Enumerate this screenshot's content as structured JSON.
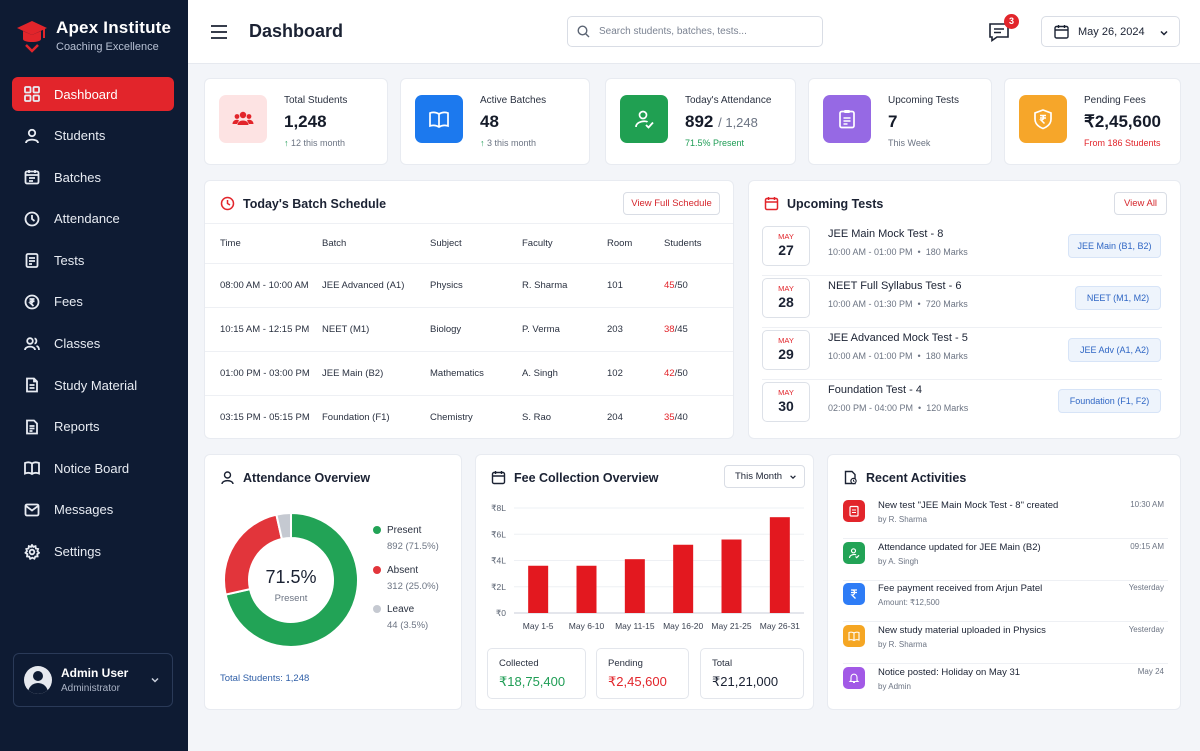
{
  "brand": {
    "name": "Apex Institute",
    "tagline": "Coaching Excellence"
  },
  "nav": [
    {
      "label": "Dashboard",
      "icon": "grid-icon",
      "active": true
    },
    {
      "label": "Students",
      "icon": "user-icon"
    },
    {
      "label": "Batches",
      "icon": "calendar-icon"
    },
    {
      "label": "Attendance",
      "icon": "clock-icon"
    },
    {
      "label": "Tests",
      "icon": "clipboard-icon"
    },
    {
      "label": "Fees",
      "icon": "rupee-circle-icon"
    },
    {
      "label": "Classes",
      "icon": "users-icon"
    },
    {
      "label": "Study Material",
      "icon": "document-icon"
    },
    {
      "label": "Reports",
      "icon": "report-icon"
    },
    {
      "label": "Notice Board",
      "icon": "book-icon"
    },
    {
      "label": "Messages",
      "icon": "mail-icon"
    },
    {
      "label": "Settings",
      "icon": "gear-icon"
    }
  ],
  "user": {
    "name": "Admin User",
    "role": "Administrator"
  },
  "header": {
    "title": "Dashboard",
    "search_placeholder": "Search students, batches, tests...",
    "message_count": "3",
    "date": "May 26, 2024"
  },
  "stats": {
    "students": {
      "label": "Total Students",
      "value": "1,248",
      "sub": "12 this month"
    },
    "batches": {
      "label": "Active Batches",
      "value": "48",
      "sub": "3 this month"
    },
    "attendance": {
      "label": "Today's Attendance",
      "value": "892",
      "total": "/ 1,248",
      "sub": "71.5% Present"
    },
    "tests": {
      "label": "Upcoming Tests",
      "value": "7",
      "sub": "This Week"
    },
    "fees": {
      "label": "Pending Fees",
      "value": "₹2,45,600",
      "sub": "From 186 Students"
    }
  },
  "schedule": {
    "title": "Today's Batch Schedule",
    "button": "View Full Schedule",
    "columns": [
      "Time",
      "Batch",
      "Subject",
      "Faculty",
      "Room",
      "Students"
    ],
    "rows": [
      {
        "time": "08:00 AM - 10:00 AM",
        "batch": "JEE Advanced (A1)",
        "subject": "Physics",
        "faculty": "R. Sharma",
        "room": "101",
        "present": "45",
        "total": "/50"
      },
      {
        "time": "10:15 AM - 12:15 PM",
        "batch": "NEET (M1)",
        "subject": "Biology",
        "faculty": "P. Verma",
        "room": "203",
        "present": "38",
        "total": "/45"
      },
      {
        "time": "01:00 PM - 03:00 PM",
        "batch": "JEE Main (B2)",
        "subject": "Mathematics",
        "faculty": "A. Singh",
        "room": "102",
        "present": "42",
        "total": "/50"
      },
      {
        "time": "03:15 PM - 05:15 PM",
        "batch": "Foundation (F1)",
        "subject": "Chemistry",
        "faculty": "S. Rao",
        "room": "204",
        "present": "35",
        "total": "/40"
      }
    ]
  },
  "upcoming": {
    "title": "Upcoming Tests",
    "button": "View All",
    "items": [
      {
        "month": "MAY",
        "day": "27",
        "name": "JEE Main Mock Test - 8",
        "time": "10:00 AM - 01:00 PM",
        "marks": "180 Marks",
        "tag": "JEE Main (B1, B2)"
      },
      {
        "month": "MAY",
        "day": "28",
        "name": "NEET Full Syllabus Test - 6",
        "time": "10:00 AM - 01:30 PM",
        "marks": "720 Marks",
        "tag": "NEET (M1, M2)"
      },
      {
        "month": "MAY",
        "day": "29",
        "name": "JEE Advanced Mock Test - 5",
        "time": "10:00 AM - 01:00 PM",
        "marks": "180 Marks",
        "tag": "JEE Adv (A1, A2)"
      },
      {
        "month": "MAY",
        "day": "30",
        "name": "Foundation Test - 4",
        "time": "02:00 PM - 04:00 PM",
        "marks": "120 Marks",
        "tag": "Foundation (F1, F2)"
      }
    ]
  },
  "attendance_overview": {
    "title": "Attendance Overview",
    "center_value": "71.5%",
    "center_label": "Present",
    "legend": [
      {
        "label": "Present",
        "value": "892 (71.5%)",
        "color": "#22a356"
      },
      {
        "label": "Absent",
        "value": "312 (25.0%)",
        "color": "#e2353b"
      },
      {
        "label": "Leave",
        "value": "44 (3.5%)",
        "color": "#c5c9d1"
      }
    ],
    "footer": "Total Students: 1,248"
  },
  "fee_overview": {
    "title": "Fee Collection Overview",
    "period": "This Month",
    "collected_label": "Collected",
    "collected": "₹18,75,400",
    "pending_label": "Pending",
    "pending": "₹2,45,600",
    "total_label": "Total",
    "total": "₹21,21,000"
  },
  "chart_data": {
    "type": "bar",
    "categories": [
      "May 1-5",
      "May 6-10",
      "May 11-15",
      "May 16-20",
      "May 21-25",
      "May 26-31"
    ],
    "values": [
      3.6,
      3.6,
      4.1,
      5.2,
      5.6,
      7.3
    ],
    "yticks": [
      "₹0",
      "₹2L",
      "₹4L",
      "₹6L",
      "₹8L"
    ],
    "ylim": [
      0,
      8
    ],
    "color": "#e3181f",
    "grid": true
  },
  "activities": {
    "title": "Recent Activities",
    "items": [
      {
        "text": "New test \"JEE Main Mock Test - 8\" created",
        "by": "by R. Sharma",
        "time": "10:30 AM",
        "color": "#e2252b",
        "icon": "clipboard-icon"
      },
      {
        "text": "Attendance updated for JEE Main (B2)",
        "by": "by A. Singh",
        "time": "09:15 AM",
        "color": "#22a356",
        "icon": "user-check-icon"
      },
      {
        "text": "Fee payment received from Arjun Patel",
        "by": "Amount: ₹12,500",
        "time": "Yesterday",
        "color": "#2e7cf6",
        "icon": "rupee-icon"
      },
      {
        "text": "New study material uploaded in Physics",
        "by": "by R. Sharma",
        "time": "Yesterday",
        "color": "#f5a623",
        "icon": "book-icon"
      },
      {
        "text": "Notice posted: Holiday on May 31",
        "by": "by Admin",
        "time": "May 24",
        "color": "#a259e6",
        "icon": "bell-icon"
      }
    ]
  }
}
